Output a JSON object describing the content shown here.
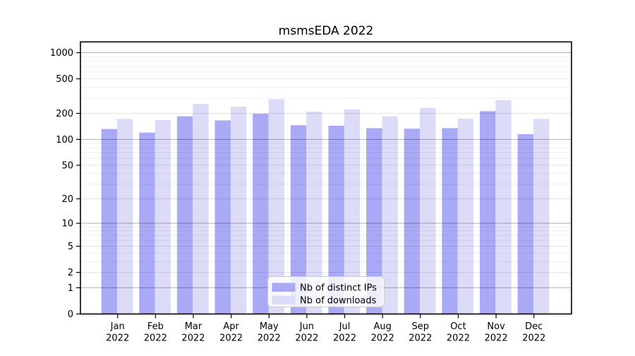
{
  "chart_data": {
    "type": "bar",
    "title": "msmsEDA 2022",
    "categories": [
      "Jan 2022",
      "Feb 2022",
      "Mar 2022",
      "Apr 2022",
      "May 2022",
      "Jun 2022",
      "Jul 2022",
      "Aug 2022",
      "Sep 2022",
      "Oct 2022",
      "Nov 2022",
      "Dec 2022"
    ],
    "series": [
      {
        "name": "Nb of distinct IPs",
        "color": "#a9a9f6",
        "values": [
          132,
          120,
          185,
          166,
          198,
          146,
          144,
          135,
          133,
          135,
          212,
          115
        ]
      },
      {
        "name": "Nb of downloads",
        "color": "#dcdcf9",
        "values": [
          173,
          168,
          257,
          239,
          292,
          210,
          223,
          185,
          232,
          174,
          285,
          173
        ]
      }
    ],
    "xlabel": "",
    "ylabel": "",
    "yscale": "log-like (position proportional to log10(1+value))",
    "yticks": [
      0,
      1,
      2,
      5,
      10,
      20,
      50,
      100,
      200,
      500,
      1000
    ],
    "major_gridlines": [
      1,
      10,
      100,
      1000
    ],
    "mid_gridlines": [
      2,
      5,
      20,
      50,
      200,
      500
    ],
    "minor_gridlines": [
      3,
      4,
      6,
      7,
      8,
      9,
      30,
      40,
      60,
      70,
      80,
      90,
      300,
      400,
      600,
      700,
      800,
      900
    ],
    "ylim": [
      0,
      1330
    ],
    "grid": true,
    "legend": {
      "position": "bottom-center",
      "labels": [
        "Nb of distinct IPs",
        "Nb of downloads"
      ]
    },
    "colors": {
      "frame": "#000000",
      "major_grid": "rgba(0,0,0,0.30)",
      "mid_grid": "rgba(0,0,0,0.13)",
      "minor_grid": "rgba(0,0,0,0.07)",
      "legend_border": "#cccccc",
      "legend_bg": "rgba(255,255,255,0.8)"
    }
  }
}
